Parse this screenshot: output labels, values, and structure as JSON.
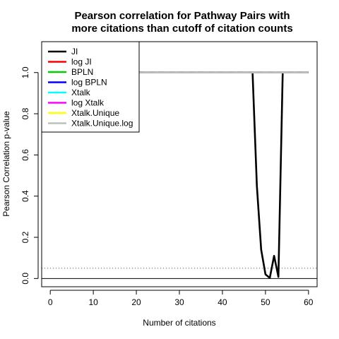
{
  "chart_data": {
    "type": "line",
    "title_lines": [
      "Pearson correlation for Pathway Pairs with",
      "more citations than cutoff of citation counts"
    ],
    "xlabel": "Number of citations",
    "ylabel": "Pearson Correlation p-value",
    "xlim": [
      -2,
      62
    ],
    "ylim": [
      -0.04,
      1.15
    ],
    "x_ticks": [
      0,
      10,
      20,
      30,
      40,
      50,
      60
    ],
    "y_ticks": [
      0.0,
      0.2,
      0.4,
      0.6,
      0.8,
      1.0
    ],
    "reference_lines": [
      {
        "y": 0.05,
        "style": "dotted",
        "color": "#555555"
      },
      {
        "y": 0.0,
        "style": "solid",
        "color": "#000000"
      }
    ],
    "legend_position": "top-left",
    "series": [
      {
        "name": "JI",
        "color": "#000000",
        "lwd": 2.6,
        "x": [
          0,
          46,
          47,
          48,
          49,
          50,
          51,
          52,
          53,
          54,
          55,
          60
        ],
        "y": [
          1.0,
          1.0,
          1.0,
          0.45,
          0.14,
          0.02,
          0.003,
          0.11,
          0.008,
          1.0,
          1.0,
          1.0
        ]
      },
      {
        "name": "log JI",
        "color": "#ff0000",
        "lwd": 2.6,
        "x": [
          0,
          60
        ],
        "y": [
          1.0,
          1.0
        ]
      },
      {
        "name": "BPLN",
        "color": "#00cd00",
        "lwd": 2.6,
        "x": [
          0,
          60
        ],
        "y": [
          1.0,
          1.0
        ]
      },
      {
        "name": "log BPLN",
        "color": "#0000ff",
        "lwd": 2.6,
        "x": [
          0,
          60
        ],
        "y": [
          1.0,
          1.0
        ]
      },
      {
        "name": "Xtalk",
        "color": "#00ffff",
        "lwd": 2.6,
        "x": [
          0,
          60
        ],
        "y": [
          1.0,
          1.0
        ]
      },
      {
        "name": "log Xtalk",
        "color": "#ff00ff",
        "lwd": 2.6,
        "x": [
          0,
          60
        ],
        "y": [
          1.0,
          1.0
        ],
        "dash": "7 7"
      },
      {
        "name": "Xtalk.Unique",
        "color": "#ffff00",
        "lwd": 2.6,
        "x": [
          0,
          60
        ],
        "y": [
          1.0,
          1.0
        ],
        "dash": "7 7",
        "dashoffset": 7
      },
      {
        "name": "Xtalk.Unique.log",
        "color": "#bebebe",
        "lwd": 2.6,
        "x": [
          0,
          60
        ],
        "y": [
          1.0,
          1.0
        ]
      }
    ]
  }
}
